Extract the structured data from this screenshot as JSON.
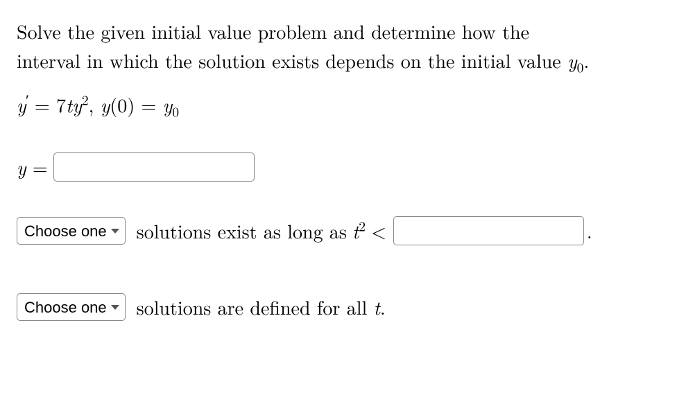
{
  "problem": {
    "line1": "Solve the given initial value problem and determine how the",
    "line2_prefix": "interval in which the solution exists depends on the initial value ",
    "line2_var": "y",
    "line2_sub": "0",
    "line2_suffix": "."
  },
  "equation": {
    "y_var": "y",
    "prime": "′",
    "equals": " = ",
    "coef": "7",
    "t_var": "t",
    "y2_var": "y",
    "exp": "2",
    "comma": ",  ",
    "y_func": "y",
    "paren_open": "(",
    "zero": "0",
    "paren_close": ")",
    "eq2": " = ",
    "y0_var": "y",
    "y0_sub": "0"
  },
  "answer1": {
    "y_label": "y",
    "equals": " = "
  },
  "dropdown": {
    "label": "Choose one"
  },
  "row2": {
    "text": " solutions exist as long as ",
    "t_var": "t",
    "exp": "2",
    "lt": " < ",
    "period": "."
  },
  "row3": {
    "text_prefix": " solutions are defined for all ",
    "t_var": "t",
    "period": "."
  },
  "styling": {
    "background_color": "#ffffff",
    "text_color": "#000000",
    "border_color": "#888888",
    "dropdown_font": "Arial",
    "body_font": "Latin Modern Roman",
    "font_size_body": 28,
    "font_size_dropdown": 22,
    "input_border_radius": 5,
    "caret_color": "#555555"
  }
}
